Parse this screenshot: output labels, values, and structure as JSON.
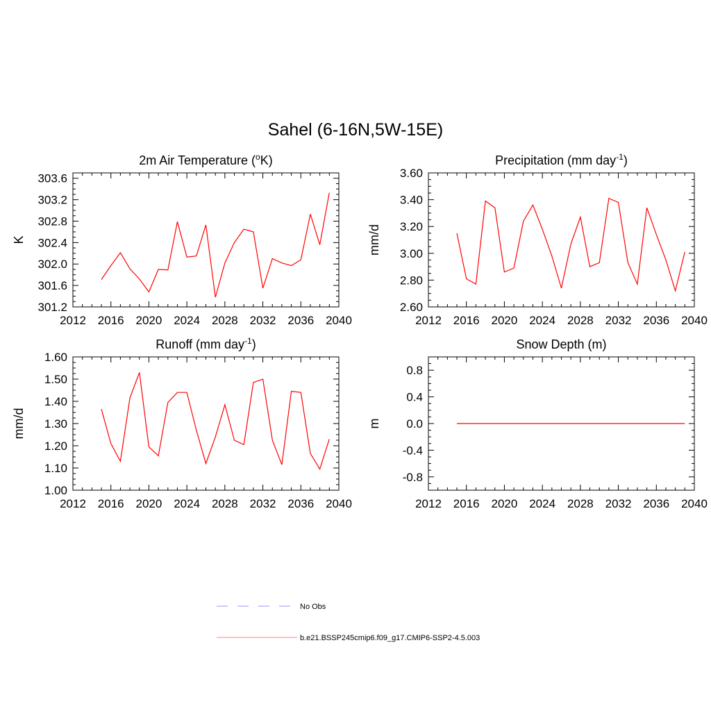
{
  "page_title": "Sahel (6-16N,5W-15E)",
  "colors": {
    "series": "#ff0000",
    "obs": "#aaaaff",
    "axis": "#000000"
  },
  "legend": {
    "obs_label": "No Obs",
    "model_label": "b.e21.BSSP245cmip6.f09_g17.CMIP6-SSP2-4.5.003"
  },
  "chart_data": [
    {
      "type": "line",
      "title": "2m Air Temperature (°K)",
      "title_main": "2m Air Temperature (",
      "title_sup_prefix": "o",
      "title_after": "K)",
      "ylabel": "K",
      "xlim": [
        2012,
        2040
      ],
      "ylim": [
        301.2,
        303.7
      ],
      "xticks": [
        "2012",
        "2016",
        "2020",
        "2024",
        "2028",
        "2032",
        "2036",
        "2040"
      ],
      "yticks": [
        "301.2",
        "301.6",
        "302.0",
        "302.4",
        "302.8",
        "303.2",
        "303.6"
      ],
      "x": [
        2015,
        2016,
        2017,
        2018,
        2019,
        2020,
        2021,
        2022,
        2023,
        2024,
        2025,
        2026,
        2027,
        2028,
        2029,
        2030,
        2031,
        2032,
        2033,
        2034,
        2035,
        2036,
        2037,
        2038,
        2039
      ],
      "series": [
        {
          "values": [
            301.71,
            301.97,
            302.21,
            301.91,
            301.72,
            301.48,
            301.9,
            301.89,
            302.79,
            302.13,
            302.15,
            302.73,
            301.38,
            302.02,
            302.4,
            302.65,
            302.6,
            301.55,
            302.1,
            302.02,
            301.97,
            302.08,
            302.93,
            302.36,
            303.33
          ]
        }
      ]
    },
    {
      "type": "line",
      "title": "Precipitation (mm day-1)",
      "title_main": "Precipitation (mm day",
      "title_sup": "-1",
      "title_after": ")",
      "ylabel": "mm/d",
      "xlim": [
        2012,
        2040
      ],
      "ylim": [
        2.6,
        3.6
      ],
      "xticks": [
        "2012",
        "2016",
        "2020",
        "2024",
        "2028",
        "2032",
        "2036",
        "2040"
      ],
      "yticks": [
        "2.60",
        "2.80",
        "3.00",
        "3.20",
        "3.40",
        "3.60"
      ],
      "x": [
        2015,
        2016,
        2017,
        2018,
        2019,
        2020,
        2021,
        2022,
        2023,
        2024,
        2025,
        2026,
        2027,
        2028,
        2029,
        2030,
        2031,
        2032,
        2033,
        2034,
        2035,
        2036,
        2037,
        2038,
        2039
      ],
      "series": [
        {
          "values": [
            3.15,
            2.81,
            2.77,
            3.39,
            3.34,
            2.86,
            2.89,
            3.24,
            3.36,
            3.18,
            2.98,
            2.74,
            3.07,
            3.27,
            2.9,
            2.93,
            3.41,
            3.38,
            2.93,
            2.77,
            3.34,
            3.14,
            2.95,
            2.72,
            3.01
          ]
        }
      ]
    },
    {
      "type": "line",
      "title": "Runoff (mm day-1)",
      "title_main": "Runoff (mm day",
      "title_sup": "-1",
      "title_after": ")",
      "ylabel": "mm/d",
      "xlim": [
        2012,
        2040
      ],
      "ylim": [
        1.0,
        1.6
      ],
      "xticks": [
        "2012",
        "2016",
        "2020",
        "2024",
        "2028",
        "2032",
        "2036",
        "2040"
      ],
      "yticks": [
        "1.00",
        "1.10",
        "1.20",
        "1.30",
        "1.40",
        "1.50",
        "1.60"
      ],
      "x": [
        2015,
        2016,
        2017,
        2018,
        2019,
        2020,
        2021,
        2022,
        2023,
        2024,
        2025,
        2026,
        2027,
        2028,
        2029,
        2030,
        2031,
        2032,
        2033,
        2034,
        2035,
        2036,
        2037,
        2038,
        2039
      ],
      "series": [
        {
          "values": [
            1.365,
            1.21,
            1.13,
            1.415,
            1.53,
            1.195,
            1.155,
            1.395,
            1.44,
            1.44,
            1.27,
            1.12,
            1.24,
            1.385,
            1.225,
            1.205,
            1.485,
            1.5,
            1.225,
            1.115,
            1.445,
            1.44,
            1.165,
            1.095,
            1.23
          ]
        }
      ]
    },
    {
      "type": "line",
      "title": "Snow Depth (m)",
      "title_main": "Snow Depth (m)",
      "ylabel": "m",
      "xlim": [
        2012,
        2040
      ],
      "ylim": [
        -1.0,
        1.0
      ],
      "xticks": [
        "2012",
        "2016",
        "2020",
        "2024",
        "2028",
        "2032",
        "2036",
        "2040"
      ],
      "yticks": [
        "-0.8",
        "-0.4",
        "0.0",
        "0.4",
        "0.8"
      ],
      "ytick_values": [
        -0.8,
        -0.4,
        0.0,
        0.4,
        0.8
      ],
      "x": [
        2015,
        2016,
        2017,
        2018,
        2019,
        2020,
        2021,
        2022,
        2023,
        2024,
        2025,
        2026,
        2027,
        2028,
        2029,
        2030,
        2031,
        2032,
        2033,
        2034,
        2035,
        2036,
        2037,
        2038,
        2039
      ],
      "series": [
        {
          "values": [
            0,
            0,
            0,
            0,
            0,
            0,
            0,
            0,
            0,
            0,
            0,
            0,
            0,
            0,
            0,
            0,
            0,
            0,
            0,
            0,
            0,
            0,
            0,
            0,
            0
          ]
        }
      ]
    }
  ]
}
